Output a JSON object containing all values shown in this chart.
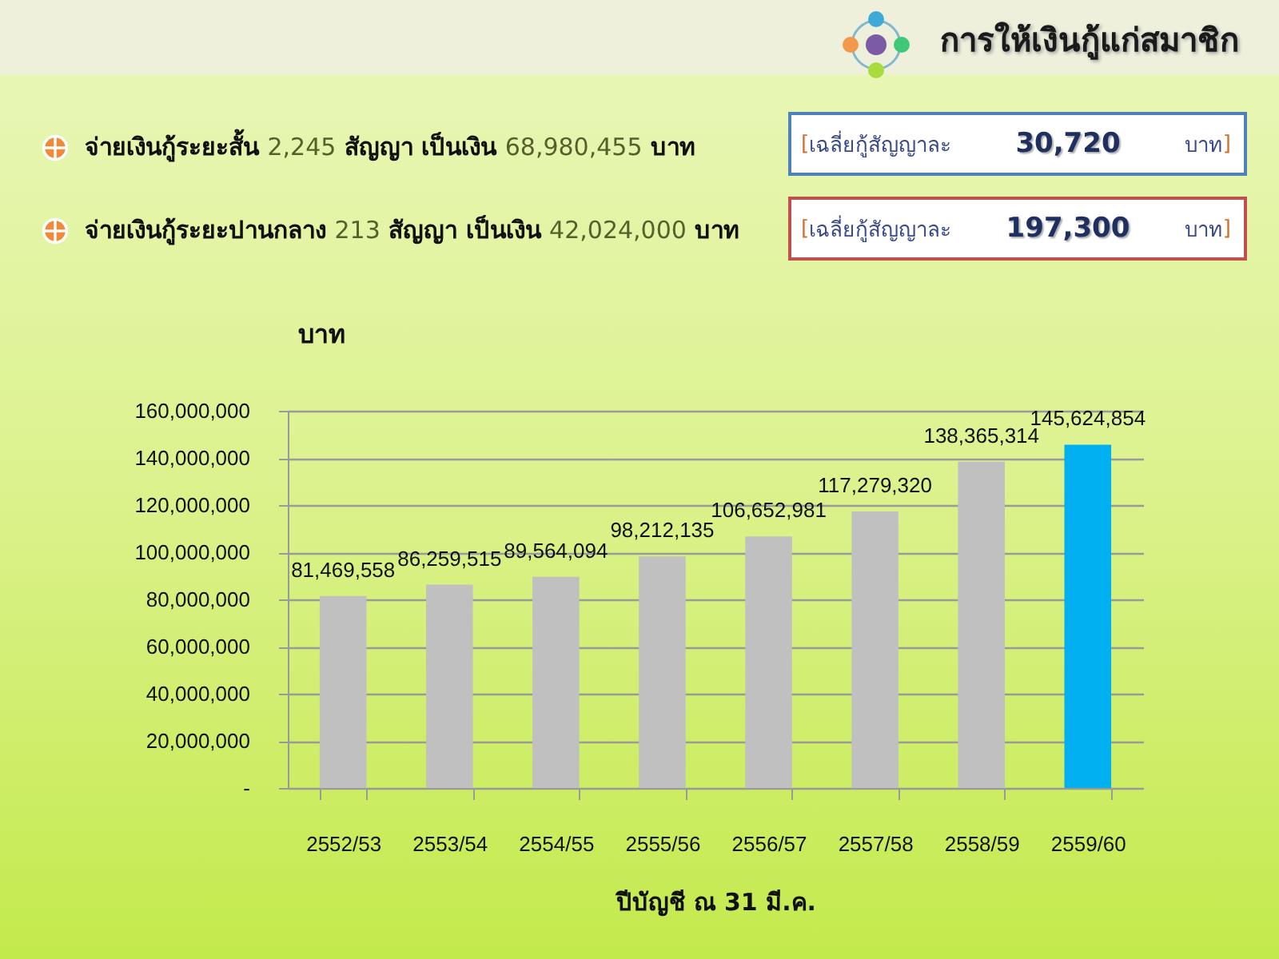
{
  "chart_data": {
    "type": "bar",
    "title": "การให้เงินกู้แก่สมาชิก",
    "annotations": [
      "จ่ายเงินกู้ระยะสั้น 2,245 สัญญา  เป็นเงิน 68,980,455  บาท",
      "จ่ายเงินกู้ระยะปานกลาง 213 สัญญา  เป็นเงิน 42,024,000  บาท",
      "[เฉลี่ยกู้สัญญาละ 30,720 บาท]",
      "[เฉลี่ยกู้สัญญาละ 197,300 บาท]"
    ],
    "xlabel": "ปีบัญชี ณ 31 มี.ค.",
    "ylabel": "บาท",
    "categories": [
      "2552/53",
      "2553/54",
      "2554/55",
      "2555/56",
      "2556/57",
      "2557/58",
      "2558/59",
      "2559/60"
    ],
    "values": [
      81469558,
      86259515,
      89564094,
      98212135,
      106652981,
      117279320,
      138365314,
      145624854
    ],
    "value_labels": [
      "81,469,558",
      "86,259,515",
      "89,564,094",
      "98,212,135",
      "106,652,981",
      "117,279,320",
      "138,365,314",
      "145,624,854"
    ],
    "colors": [
      "#c0c0c0",
      "#c0c0c0",
      "#c0c0c0",
      "#c0c0c0",
      "#c0c0c0",
      "#c0c0c0",
      "#c0c0c0",
      "#00b0f0"
    ],
    "ylim": [
      0,
      160000000
    ],
    "yticks": [
      {
        "value": 0,
        "label": "-"
      },
      {
        "value": 20000000,
        "label": "20,000,000"
      },
      {
        "value": 40000000,
        "label": "40,000,000"
      },
      {
        "value": 60000000,
        "label": "60,000,000"
      },
      {
        "value": 80000000,
        "label": "80,000,000"
      },
      {
        "value": 100000000,
        "label": "100,000,000"
      },
      {
        "value": 120000000,
        "label": "120,000,000"
      },
      {
        "value": 140000000,
        "label": "140,000,000"
      },
      {
        "value": 160000000,
        "label": "160,000,000"
      }
    ],
    "grid": "y"
  }
}
